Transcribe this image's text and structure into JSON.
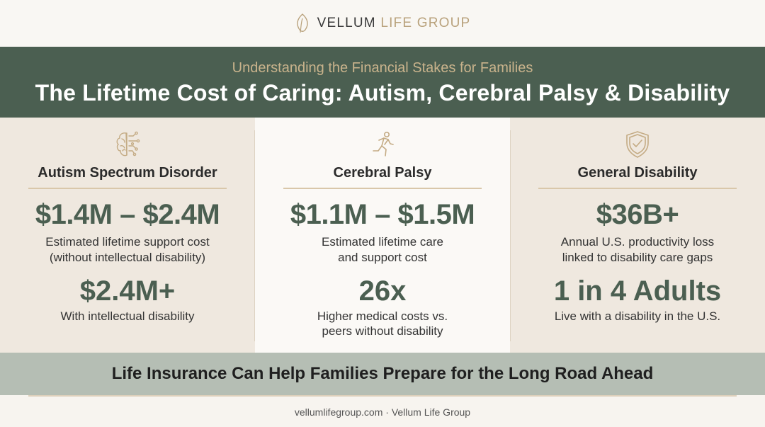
{
  "brand": {
    "name": "VELLUM",
    "accent": "LIFE GROUP",
    "icon": "leaf-icon"
  },
  "banner": {
    "subtitle": "Understanding the Financial Stakes for Families",
    "title": "The Lifetime Cost of Caring: Autism, Cerebral Palsy & Disability"
  },
  "panels": [
    {
      "icon": "brain-circuit-icon",
      "title": "Autism Spectrum Disorder",
      "stat1": "$1.4M – $2.4M",
      "desc1": [
        "Estimated lifetime support cost",
        "(without intellectual disability)"
      ],
      "stat2": "$2.4M+",
      "desc2": [
        "With intellectual disability"
      ]
    },
    {
      "icon": "running-person-icon",
      "title": "Cerebral Palsy",
      "stat1": "$1.1M – $1.5M",
      "desc1": [
        "Estimated lifetime care",
        "and support cost"
      ],
      "stat2": "26x",
      "desc2": [
        "Higher medical costs vs.",
        "peers without disability"
      ]
    },
    {
      "icon": "shield-check-icon",
      "title": "General Disability",
      "stat1": "$36B+",
      "desc1": [
        "Annual U.S. productivity loss",
        "linked to disability care gaps"
      ],
      "stat2": "1 in 4 Adults",
      "desc2": [
        "Live with a disability in the U.S."
      ]
    }
  ],
  "cta": "Life Insurance Can Help Families Prepare for the Long Road Ahead",
  "footer": "vellumlifegroup.com · Vellum Life Group",
  "colors": {
    "banner": "#4b5f51",
    "gold": "#b9a27c",
    "stat": "#4b5f51",
    "cta": "#b5beb4",
    "background": "#efe8df"
  }
}
